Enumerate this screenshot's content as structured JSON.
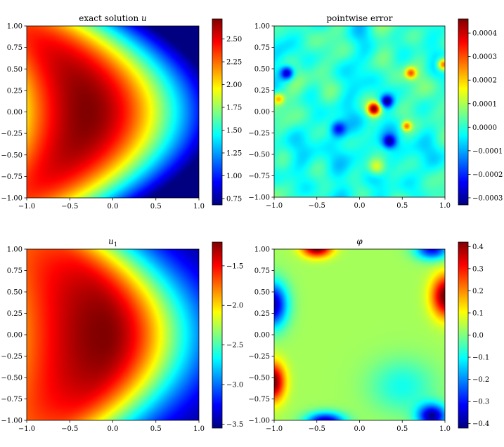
{
  "colors": {
    "colormap": "jet",
    "jet_stops": [
      "#00007f",
      "#0000ff",
      "#007fff",
      "#00ffff",
      "#7fff7f",
      "#ffff00",
      "#ff7f00",
      "#ff0000",
      "#7f0000"
    ]
  },
  "chart_data": [
    {
      "type": "heatmap",
      "id": "u",
      "title": "exact solution u",
      "title_plain": "exact solution ",
      "title_var": "u",
      "title_sub": "",
      "xlim": [
        -1.0,
        1.0
      ],
      "ylim": [
        -1.0,
        1.0
      ],
      "xticks": [
        "−1.0",
        "−0.5",
        "0.0",
        "0.5",
        "1.0"
      ],
      "yticks": [
        "1.00",
        "0.75",
        "0.50",
        "0.25",
        "0.00",
        "−0.25",
        "−0.50",
        "−0.75",
        "−1.00"
      ],
      "colorbar": {
        "vmin": 0.68,
        "vmax": 2.72,
        "ticks": [
          "2.50",
          "2.25",
          "2.00",
          "1.75",
          "1.50",
          "1.25",
          "1.00",
          "0.75"
        ],
        "tick_values": [
          2.5,
          2.25,
          2.0,
          1.75,
          1.5,
          1.25,
          1.0,
          0.75
        ]
      },
      "field": "exp(1 - x - y^2) style arch, max ≈ 2.72 near x≈-0.3, min ≈ 0.7 at right corners"
    },
    {
      "type": "heatmap",
      "id": "err",
      "title": "pointwise error",
      "title_plain": "pointwise error",
      "title_var": "",
      "title_sub": "",
      "xlim": [
        -1.0,
        1.0
      ],
      "ylim": [
        -1.0,
        1.0
      ],
      "xticks": [
        "−1.0",
        "−0.5",
        "0.0",
        "0.5",
        "1.0"
      ],
      "yticks": [
        "1.00",
        "0.75",
        "0.50",
        "0.25",
        "0.00",
        "−0.25",
        "−0.50",
        "−0.75",
        "−1.00"
      ],
      "colorbar": {
        "vmin": -0.00033,
        "vmax": 0.00046,
        "ticks": [
          "0.0004",
          "0.0003",
          "0.0002",
          "0.0001",
          "0.0000",
          "−0.0001",
          "−0.0002",
          "−0.0003"
        ],
        "tick_values": [
          0.0004,
          0.0003,
          0.0002,
          0.0001,
          0.0,
          -0.0001,
          -0.0002,
          -0.0003
        ]
      },
      "field": "oscillatory error pattern, peak ≈ 0.00046 at (0.17, 0.03)"
    },
    {
      "type": "heatmap",
      "id": "u1",
      "title": "u1",
      "title_plain": "",
      "title_var": "u",
      "title_sub": "1",
      "xlim": [
        -1.0,
        1.0
      ],
      "ylim": [
        -1.0,
        1.0
      ],
      "xticks": [
        "−1.0",
        "−0.5",
        "0.0",
        "0.5",
        "1.0"
      ],
      "yticks": [
        "1.00",
        "0.75",
        "0.50",
        "0.25",
        "0.00",
        "−0.25",
        "−0.50",
        "−0.75",
        "−1.00"
      ],
      "colorbar": {
        "vmin": -3.55,
        "vmax": -1.2,
        "ticks": [
          "−1.5",
          "−2.0",
          "−2.5",
          "−3.0",
          "−3.5"
        ],
        "tick_values": [
          -1.5,
          -2.0,
          -2.5,
          -3.0,
          -3.5
        ]
      },
      "field": "arch similar to u, max ≈ -1.2 near x≈-0.1, min ≈ -3.55 at right corners"
    },
    {
      "type": "heatmap",
      "id": "phi",
      "title": "phi",
      "title_plain": "",
      "title_var": "φ",
      "title_sub": "",
      "xlim": [
        -1.0,
        1.0
      ],
      "ylim": [
        -1.0,
        1.0
      ],
      "xticks": [
        "−1.0",
        "−0.5",
        "0.0",
        "0.5",
        "1.0"
      ],
      "yticks": [
        "1.00",
        "0.75",
        "0.50",
        "0.25",
        "0.00",
        "−0.25",
        "−0.50",
        "−0.75",
        "−1.00"
      ],
      "colorbar": {
        "vmin": -0.42,
        "vmax": 0.42,
        "ticks": [
          "0.4",
          "0.3",
          "0.2",
          "0.1",
          "0.0",
          "−0.1",
          "−0.2",
          "−0.3",
          "−0.4"
        ],
        "tick_values": [
          0.4,
          0.3,
          0.2,
          0.1,
          0.0,
          -0.1,
          -0.2,
          -0.3,
          -0.4
        ]
      },
      "field": "near zero interior, extremes ±0.4 concentrated at the four corners/edges"
    }
  ]
}
